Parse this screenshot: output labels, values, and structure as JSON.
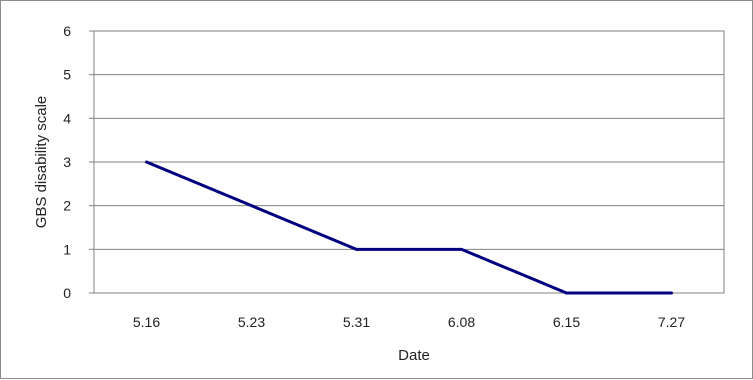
{
  "chart_data": {
    "type": "line",
    "title": "",
    "xlabel": "Date",
    "ylabel": "GBS disability scale",
    "categories": [
      "5.16",
      "5.23",
      "5.31",
      "6.08",
      "6.15",
      "7.27"
    ],
    "series": [
      {
        "values": [
          3,
          2,
          1,
          1,
          0,
          0
        ]
      }
    ],
    "ylim": [
      0,
      6
    ],
    "yticks": [
      "0",
      "1",
      "2",
      "3",
      "4",
      "5",
      "6"
    ],
    "grid": true,
    "legend": "none",
    "colors": {
      "line": "#000080",
      "grid": "#808080",
      "axis": "#808080"
    }
  }
}
